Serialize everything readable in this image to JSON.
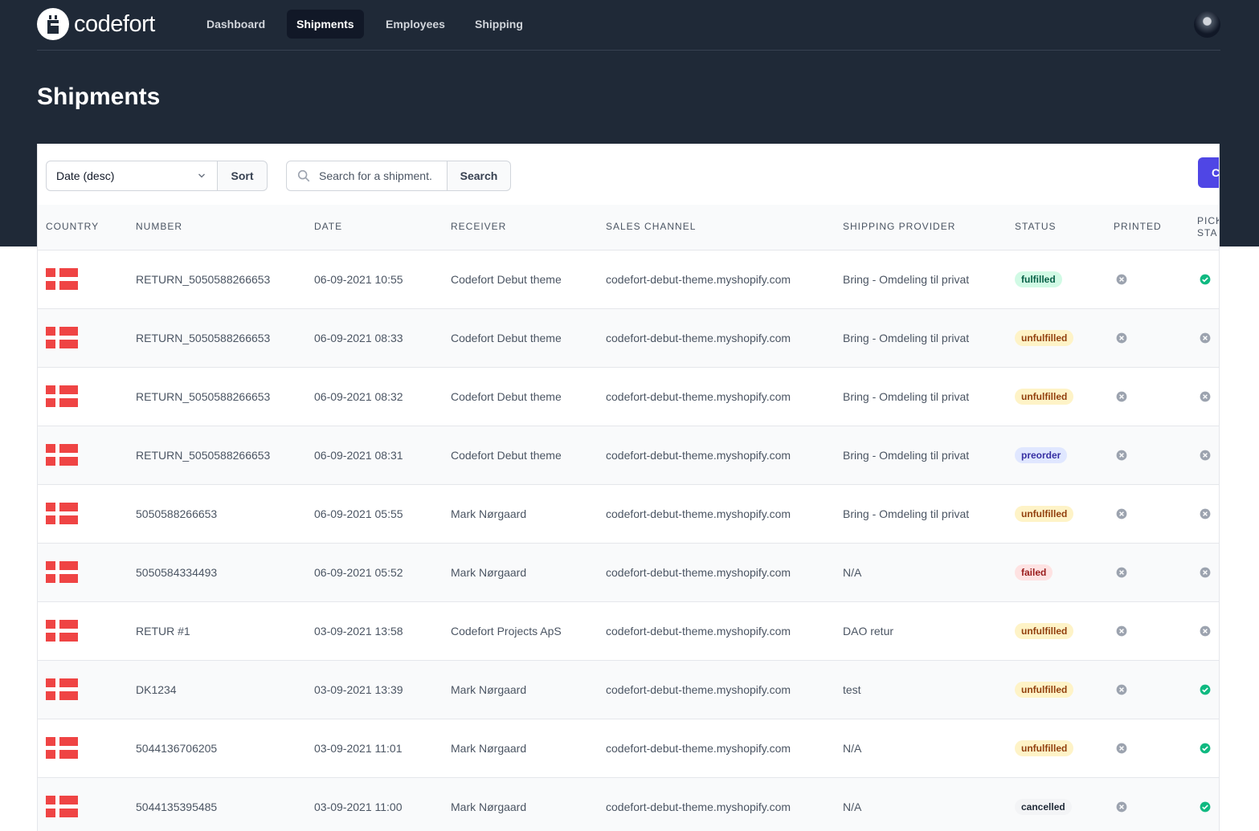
{
  "brand": {
    "name": "codefort"
  },
  "nav": {
    "items": [
      {
        "label": "Dashboard",
        "active": false
      },
      {
        "label": "Shipments",
        "active": true
      },
      {
        "label": "Employees",
        "active": false
      },
      {
        "label": "Shipping",
        "active": false
      }
    ]
  },
  "page": {
    "title": "Shipments"
  },
  "toolbar": {
    "sort_select_value": "Date (desc)",
    "sort_button": "Sort",
    "search_placeholder": "Search for a shipment.",
    "search_button": "Search",
    "create_button": "C"
  },
  "table": {
    "columns": [
      "Country",
      "Number",
      "Date",
      "Receiver",
      "Sales channel",
      "Shipping provider",
      "Status",
      "Printed",
      "Pick sta"
    ],
    "rows": [
      {
        "country": "DK",
        "number": "RETURN_5050588266653",
        "date": "06-09-2021 10:55",
        "receiver": "Codefort Debut theme",
        "sales_channel": "codefort-debut-theme.myshopify.com",
        "shipping_provider": "Bring - Omdeling til privat",
        "status": "fulfilled",
        "printed": false,
        "picked": true
      },
      {
        "country": "DK",
        "number": "RETURN_5050588266653",
        "date": "06-09-2021 08:33",
        "receiver": "Codefort Debut theme",
        "sales_channel": "codefort-debut-theme.myshopify.com",
        "shipping_provider": "Bring - Omdeling til privat",
        "status": "unfulfilled",
        "printed": false,
        "picked": false
      },
      {
        "country": "DK",
        "number": "RETURN_5050588266653",
        "date": "06-09-2021 08:32",
        "receiver": "Codefort Debut theme",
        "sales_channel": "codefort-debut-theme.myshopify.com",
        "shipping_provider": "Bring - Omdeling til privat",
        "status": "unfulfilled",
        "printed": false,
        "picked": false
      },
      {
        "country": "DK",
        "number": "RETURN_5050588266653",
        "date": "06-09-2021 08:31",
        "receiver": "Codefort Debut theme",
        "sales_channel": "codefort-debut-theme.myshopify.com",
        "shipping_provider": "Bring - Omdeling til privat",
        "status": "preorder",
        "printed": false,
        "picked": false
      },
      {
        "country": "DK",
        "number": "5050588266653",
        "date": "06-09-2021 05:55",
        "receiver": "Mark Nørgaard",
        "sales_channel": "codefort-debut-theme.myshopify.com",
        "shipping_provider": "Bring - Omdeling til privat",
        "status": "unfulfilled",
        "printed": false,
        "picked": false
      },
      {
        "country": "DK",
        "number": "5050584334493",
        "date": "06-09-2021 05:52",
        "receiver": "Mark Nørgaard",
        "sales_channel": "codefort-debut-theme.myshopify.com",
        "shipping_provider": "N/A",
        "status": "failed",
        "printed": false,
        "picked": false
      },
      {
        "country": "DK",
        "number": "RETUR #1",
        "date": "03-09-2021 13:58",
        "receiver": "Codefort Projects ApS",
        "sales_channel": "codefort-debut-theme.myshopify.com",
        "shipping_provider": "DAO retur",
        "status": "unfulfilled",
        "printed": false,
        "picked": false
      },
      {
        "country": "DK",
        "number": "DK1234",
        "date": "03-09-2021 13:39",
        "receiver": "Mark Nørgaard",
        "sales_channel": "codefort-debut-theme.myshopify.com",
        "shipping_provider": "test",
        "status": "unfulfilled",
        "printed": false,
        "picked": true
      },
      {
        "country": "DK",
        "number": "5044136706205",
        "date": "03-09-2021 11:01",
        "receiver": "Mark Nørgaard",
        "sales_channel": "codefort-debut-theme.myshopify.com",
        "shipping_provider": "N/A",
        "status": "unfulfilled",
        "printed": false,
        "picked": true
      },
      {
        "country": "DK",
        "number": "5044135395485",
        "date": "03-09-2021 11:00",
        "receiver": "Mark Nørgaard",
        "sales_channel": "codefort-debut-theme.myshopify.com",
        "shipping_provider": "N/A",
        "status": "cancelled",
        "printed": false,
        "picked": true
      }
    ]
  },
  "colors": {
    "header_bg": "#1f2937",
    "accent": "#4f46e5",
    "flag_red": "#ef4444",
    "check_green": "#10b981",
    "x_gray": "#9ca3af"
  },
  "icons": {
    "logo": "codefort-logo-icon",
    "chevron": "chevron-down-icon",
    "search": "search-icon",
    "yes": "check-circle-icon",
    "no": "x-circle-icon",
    "flag": "denmark-flag-icon"
  }
}
